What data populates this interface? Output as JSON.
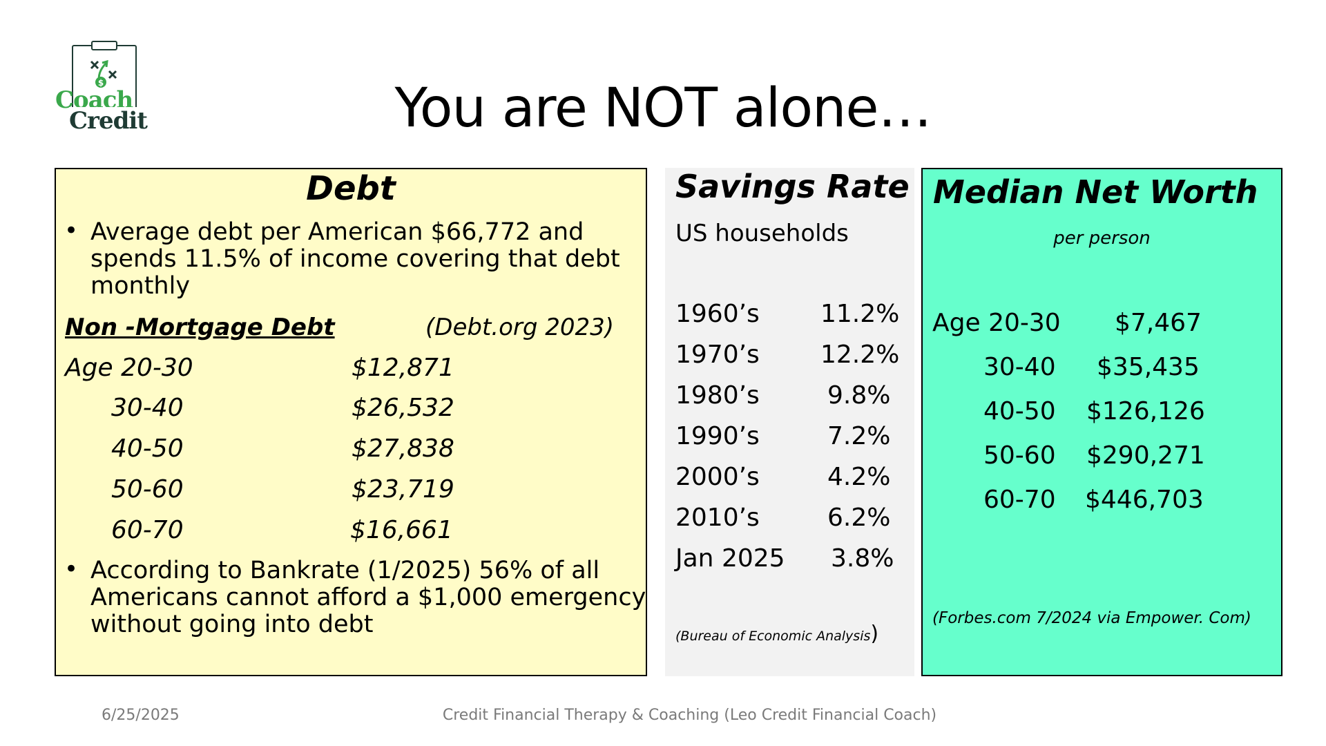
{
  "logo": {
    "line1": "Coach",
    "line2": "Credit",
    "icon": "clipboard-playbook-icon"
  },
  "title": "You are NOT alone…",
  "debt": {
    "heading": "Debt",
    "bullet1": [
      "Average debt per American $66,772 and",
      "spends 11.5% of income covering that debt",
      "monthly"
    ],
    "subheading": "Non -Mortgage Debt",
    "source": "(Debt.org 2023)",
    "rows": [
      {
        "age": "Age 20-30",
        "amount": "$12,871"
      },
      {
        "age": "30-40",
        "amount": "$26,532"
      },
      {
        "age": "40-50",
        "amount": "$27,838"
      },
      {
        "age": "50-60",
        "amount": "$23,719"
      },
      {
        "age": "60-70",
        "amount": "$16,661"
      }
    ],
    "bullet2": [
      "According to Bankrate (1/2025) 56% of all",
      "Americans cannot afford a $1,000 emergency",
      "without going into debt"
    ]
  },
  "savings": {
    "heading": "Savings Rate",
    "subheading": "US households",
    "rows": [
      {
        "period": "1960’s",
        "rate": "11.2%"
      },
      {
        "period": "1970’s",
        "rate": "12.2%"
      },
      {
        "period": "1980’s",
        "rate": "9.8%"
      },
      {
        "period": "1990’s",
        "rate": "7.2%"
      },
      {
        "period": "2000’s",
        "rate": "4.2%"
      },
      {
        "period": "2010’s",
        "rate": "6.2%"
      },
      {
        "period": "Jan 2025",
        "rate": "3.8%"
      }
    ],
    "source": "(Bureau of Economic Analysis",
    "source_close": ")"
  },
  "networth": {
    "heading": "Median Net Worth",
    "subheading": "per person",
    "rows": [
      {
        "age": "Age 20-30",
        "amount": "$7,467"
      },
      {
        "age": "30-40",
        "amount": "$35,435"
      },
      {
        "age": "40-50",
        "amount": "$126,126"
      },
      {
        "age": "50-60",
        "amount": "$290,271"
      },
      {
        "age": "60-70",
        "amount": "$446,703"
      }
    ],
    "source": "(Forbes.com 7/2024 via Empower. Com)"
  },
  "footer": {
    "date": "6/25/2025",
    "text": "Credit Financial Therapy & Coaching (Leo Credit Financial Coach)"
  },
  "colors": {
    "debt_bg": "#fffcc8",
    "savings_bg": "#f2f2f2",
    "networth_bg": "#66ffcc",
    "logo_green": "#3aa84b",
    "logo_dark": "#1f3b34"
  }
}
